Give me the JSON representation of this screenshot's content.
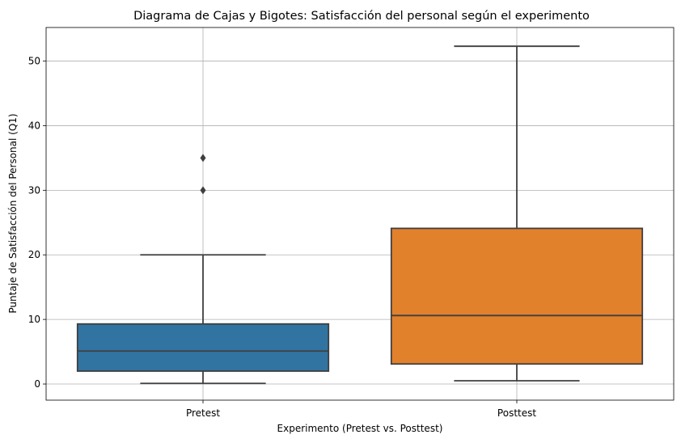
{
  "chart_data": {
    "type": "box",
    "title": "Diagrama de Cajas y Bigotes: Satisfacción del personal según el experimento",
    "xlabel": "Experimento (Pretest vs. Posttest)",
    "ylabel": "Puntaje de Satisfacción del Personal (Q1)",
    "ylim": [
      -2.5,
      55.2
    ],
    "yticks": [
      0,
      10,
      20,
      30,
      40,
      50
    ],
    "grid": true,
    "categories": [
      "Pretest",
      "Posttest"
    ],
    "series": [
      {
        "category": "Pretest",
        "color": "#3274a1",
        "whisker_low": 0.1,
        "q1": 2.0,
        "median": 5.1,
        "q3": 9.3,
        "whisker_high": 20.0,
        "outliers": [
          30.0,
          35.0
        ]
      },
      {
        "category": "Posttest",
        "color": "#e1812c",
        "whisker_low": 0.5,
        "q1": 3.1,
        "median": 10.6,
        "q3": 24.1,
        "whisker_high": 52.3,
        "outliers": []
      }
    ]
  }
}
